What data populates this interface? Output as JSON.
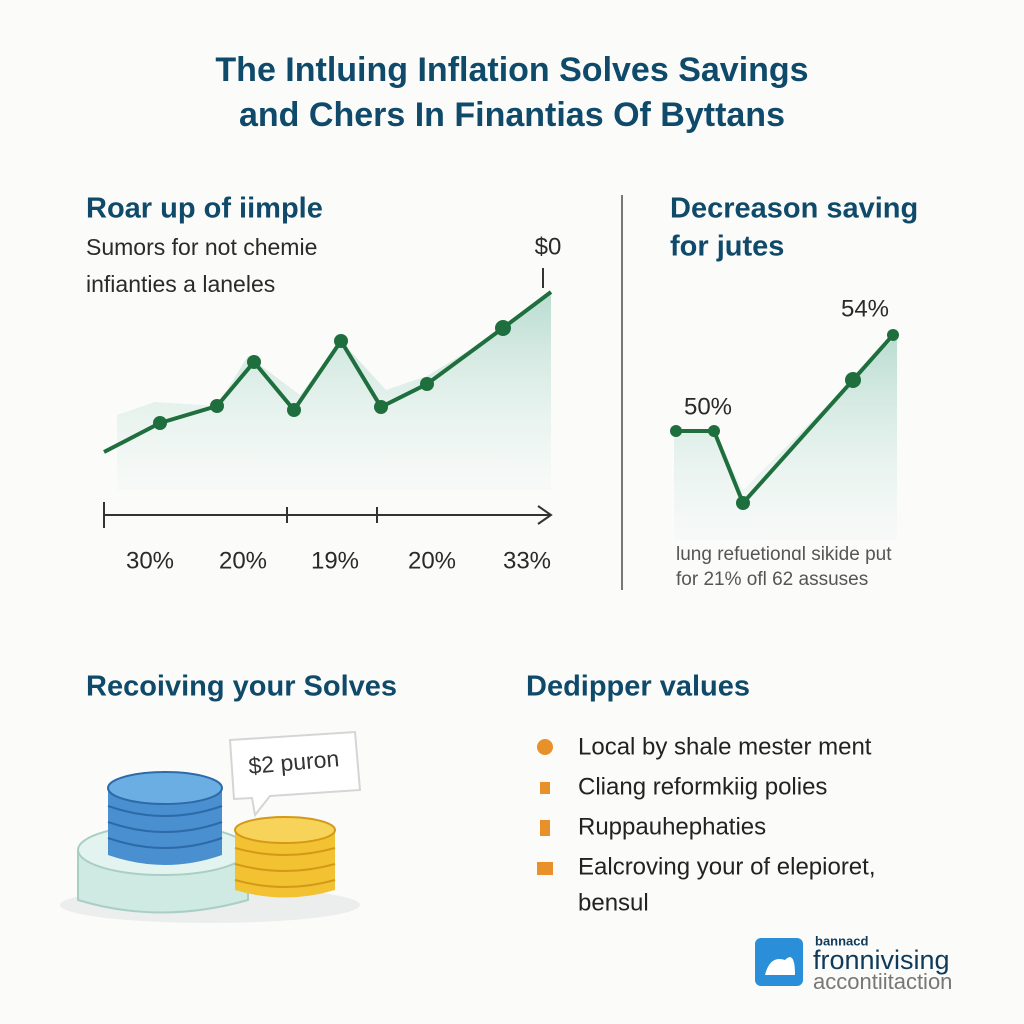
{
  "header": {
    "title_lines": [
      "The Intluing Inflation Solves Savings",
      "and Chers In Finantias Of Byttans"
    ]
  },
  "left_panel": {
    "heading": "Roar up of iimple",
    "text_lines": [
      "Sumors for not chemie",
      "infianties a laneles"
    ],
    "end_label": "$0",
    "axis_labels": [
      "30%",
      "20%",
      "19%",
      "20%",
      "33%"
    ]
  },
  "right_panel": {
    "heading_lines": [
      "Decreason saving",
      "for jutes"
    ],
    "point_labels": [
      "54%",
      "50%"
    ],
    "caption_lines": [
      "lung refuetionɑl sikide put",
      "for 21% ofl 62 assuses"
    ]
  },
  "savings": {
    "heading": "Recoiving your Solves",
    "bubble": "$2 puron"
  },
  "values": {
    "heading": "Dedipper values",
    "items": [
      "Local by shale mester ment",
      "Cliang reformkiig polies",
      "Ruppauhephaties",
      "Ealcroving your of elepioret,"
    ],
    "item_continuation": "bensul"
  },
  "logo": {
    "small": "bannacd",
    "name": "fronnivising",
    "sub": "accontiitaction"
  }
}
